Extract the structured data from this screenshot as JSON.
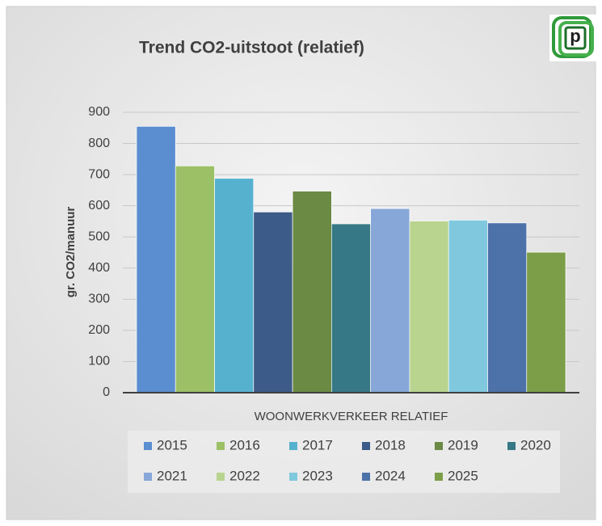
{
  "chart_data": {
    "type": "bar",
    "title": "Trend CO2-uitstoot (relatief)",
    "logo": "p",
    "y_label": "gr. CO2/manuur",
    "categories": [
      "WOONWERKVERKEER RELATIEF"
    ],
    "series": [
      {
        "name": "2015",
        "color": "#5b8ed0",
        "values": [
          855
        ]
      },
      {
        "name": "2016",
        "color": "#9cc066",
        "values": [
          728
        ]
      },
      {
        "name": "2017",
        "color": "#56b1cf",
        "values": [
          688
        ]
      },
      {
        "name": "2018",
        "color": "#3d5b88",
        "values": [
          580
        ]
      },
      {
        "name": "2019",
        "color": "#6b8a44",
        "values": [
          647
        ]
      },
      {
        "name": "2020",
        "color": "#367885",
        "values": [
          542
        ]
      },
      {
        "name": "2021",
        "color": "#86a7d8",
        "values": [
          591
        ]
      },
      {
        "name": "2022",
        "color": "#b9d48f",
        "values": [
          551
        ]
      },
      {
        "name": "2023",
        "color": "#80c8de",
        "values": [
          554
        ]
      },
      {
        "name": "2024",
        "color": "#4d71a9",
        "values": [
          545
        ]
      },
      {
        "name": "2025",
        "color": "#7c9e48",
        "values": [
          451
        ]
      }
    ],
    "ylim": [
      0,
      900
    ],
    "yticks": [
      0,
      100,
      200,
      300,
      400,
      500,
      600,
      700,
      800,
      900
    ],
    "grid": true
  }
}
